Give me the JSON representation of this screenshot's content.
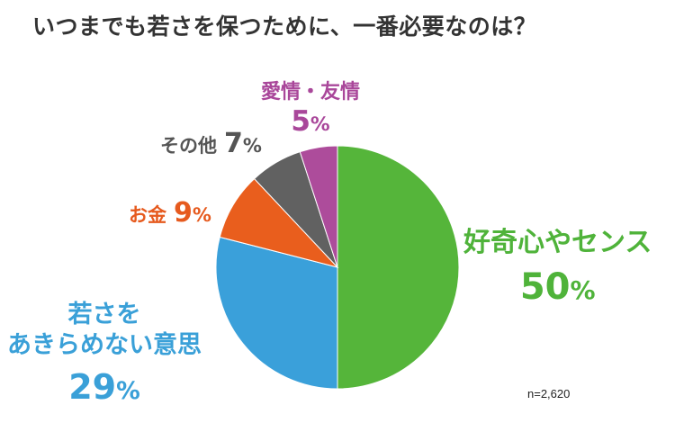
{
  "chart_data": {
    "type": "pie",
    "title": "いつまでも若さを保つために、一番必要なのは？",
    "slices": [
      {
        "label": "好奇心やセンス",
        "value": 50,
        "display": "50",
        "color": "#55b53a"
      },
      {
        "label": "若さをあきらめない意思",
        "value": 29,
        "display": "29",
        "color": "#3aa0da"
      },
      {
        "label": "お金",
        "value": 9,
        "display": "9",
        "color": "#e95e1d"
      },
      {
        "label": "その他",
        "value": 7,
        "display": "7",
        "color": "#616161"
      },
      {
        "label": "愛情・友情",
        "value": 5,
        "display": "5",
        "color": "#ad4c9b"
      }
    ],
    "unit": "%",
    "note": "n=2,620"
  },
  "labels": {
    "youth_line1": "若さを",
    "youth_line2": "あきらめない意思"
  }
}
